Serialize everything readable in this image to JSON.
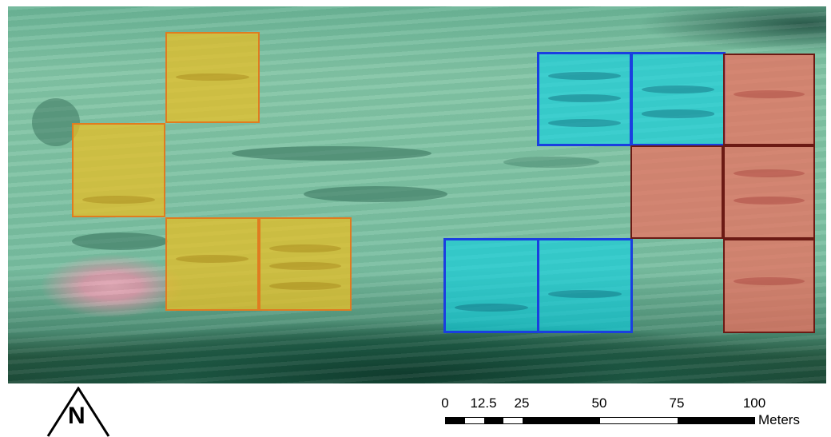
{
  "scale_bar": {
    "labels": [
      "0",
      "12.5",
      "25",
      "50",
      "75",
      "100"
    ],
    "units": "Meters"
  },
  "north_arrow": {
    "letter": "N",
    "icon": "north-arrow-icon"
  },
  "colors": {
    "plot_group_a": "#e9be23",
    "plot_group_a_border": "#e07c20",
    "plot_group_b": "#0ad2e6",
    "plot_group_b_border": "#1a3fe0",
    "plot_group_c": "#ee6e5f",
    "plot_group_c_border": "#6b1a14"
  }
}
